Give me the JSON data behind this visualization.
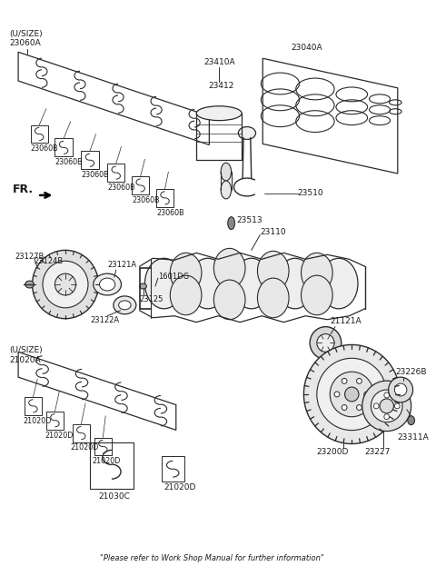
{
  "bg_color": "#ffffff",
  "line_color": "#2a2a2a",
  "text_color": "#1a1a1a",
  "fig_width": 4.8,
  "fig_height": 6.34,
  "dpi": 100,
  "footnote": "\"Please refer to Work Shop Manual for further information\"",
  "labels": {
    "usize_upper": "(U/SIZE)\n23060A",
    "23060B": "23060B",
    "23040A": "23040A",
    "23410A": "23410A",
    "23412": "23412",
    "23510": "23510",
    "23513": "23513",
    "23110": "23110",
    "1601DG": "1601DG",
    "23121A": "23121A",
    "23122A": "23122A",
    "23124B": "23124B",
    "23125": "23125",
    "23127B": "23127B",
    "usize_lower": "(U/SIZE)\n21020A",
    "21020D": "21020D",
    "21030C": "21030C",
    "21121A": "21121A",
    "23200D": "23200D",
    "23226B": "23226B",
    "23227": "23227",
    "23311A": "23311A",
    "FR": "FR."
  }
}
